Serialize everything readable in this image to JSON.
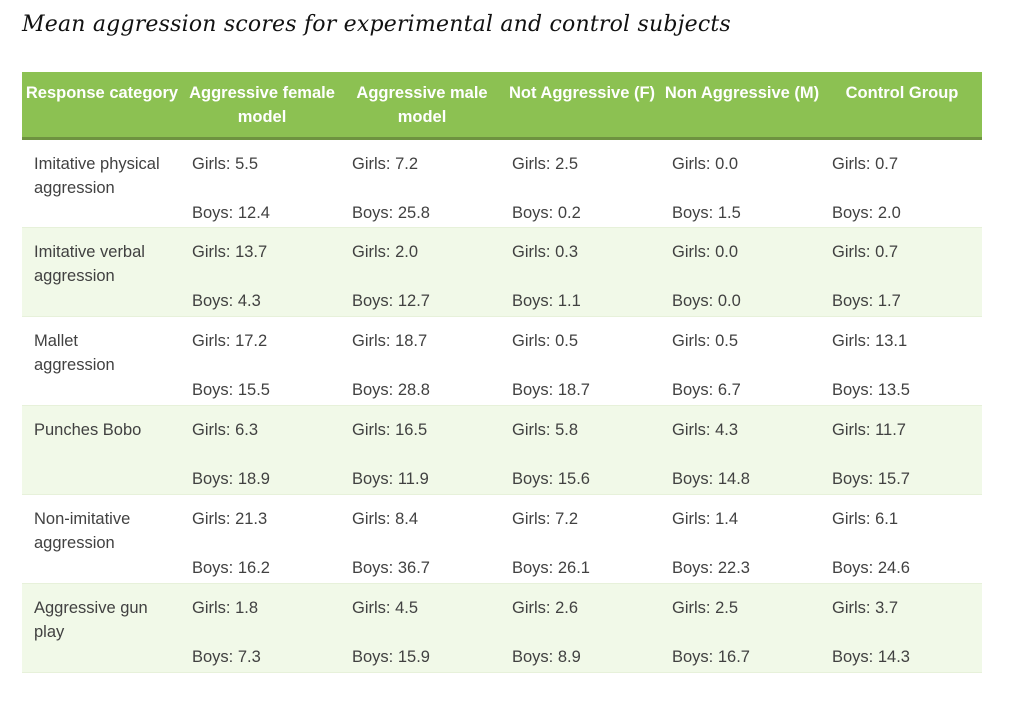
{
  "title": "Mean aggression scores for experimental and control subjects",
  "colors": {
    "header_bg": "#8cc152",
    "header_border": "#6e9340",
    "header_text": "#ffffff",
    "alt_row_bg": "#f1f9e8",
    "body_text": "#414141"
  },
  "table": {
    "columns": [
      "Response category",
      "Aggressive female model",
      "Aggressive male model",
      "Not Aggressive (F)",
      "Non Aggressive (M)",
      "Control Group"
    ],
    "rows": [
      {
        "category": "Imitative physical aggression",
        "cells": [
          {
            "girls": "Girls: 5.5",
            "boys": "Boys: 12.4"
          },
          {
            "girls": "Girls: 7.2",
            "boys": "Boys: 25.8"
          },
          {
            "girls": "Girls: 2.5",
            "boys": "Boys: 0.2"
          },
          {
            "girls": "Girls: 0.0",
            "boys": "Boys: 1.5"
          },
          {
            "girls": "Girls: 0.7",
            "boys": "Boys: 2.0"
          }
        ]
      },
      {
        "category": "Imitative verbal aggression",
        "cells": [
          {
            "girls": "Girls: 13.7",
            "boys": "Boys: 4.3"
          },
          {
            "girls": "Girls: 2.0",
            "boys": "Boys: 12.7"
          },
          {
            "girls": "Girls: 0.3",
            "boys": "Boys: 1.1"
          },
          {
            "girls": "Girls: 0.0",
            "boys": "Boys: 0.0"
          },
          {
            "girls": "Girls: 0.7",
            "boys": "Boys: 1.7"
          }
        ]
      },
      {
        "category": "Mallet aggression",
        "cells": [
          {
            "girls": "Girls: 17.2",
            "boys": "Boys: 15.5"
          },
          {
            "girls": "Girls: 18.7",
            "boys": "Boys: 28.8"
          },
          {
            "girls": "Girls: 0.5",
            "boys": "Boys: 18.7"
          },
          {
            "girls": "Girls: 0.5",
            "boys": "Boys: 6.7"
          },
          {
            "girls": "Girls: 13.1",
            "boys": "Boys: 13.5"
          }
        ]
      },
      {
        "category": "Punches Bobo",
        "cells": [
          {
            "girls": "Girls: 6.3",
            "boys": "Boys: 18.9"
          },
          {
            "girls": "Girls: 16.5",
            "boys": "Boys: 11.9"
          },
          {
            "girls": "Girls: 5.8",
            "boys": "Boys: 15.6"
          },
          {
            "girls": "Girls: 4.3",
            "boys": "Boys: 14.8"
          },
          {
            "girls": "Girls: 11.7",
            "boys": "Boys: 15.7"
          }
        ]
      },
      {
        "category": "Non-imitative aggression",
        "cells": [
          {
            "girls": "Girls: 21.3",
            "boys": "Boys: 16.2"
          },
          {
            "girls": "Girls: 8.4",
            "boys": "Boys: 36.7"
          },
          {
            "girls": "Girls: 7.2",
            "boys": "Boys: 26.1"
          },
          {
            "girls": "Girls: 1.4",
            "boys": "Boys: 22.3"
          },
          {
            "girls": "Girls: 6.1",
            "boys": "Boys: 24.6"
          }
        ]
      },
      {
        "category": "Aggressive gun play",
        "cells": [
          {
            "girls": "Girls: 1.8",
            "boys": "Boys: 7.3"
          },
          {
            "girls": "Girls: 4.5",
            "boys": "Boys: 15.9"
          },
          {
            "girls": "Girls: 2.6",
            "boys": "Boys: 8.9"
          },
          {
            "girls": "Girls: 2.5",
            "boys": "Boys: 16.7"
          },
          {
            "girls": "Girls: 3.7",
            "boys": "Boys: 14.3"
          }
        ]
      }
    ]
  }
}
